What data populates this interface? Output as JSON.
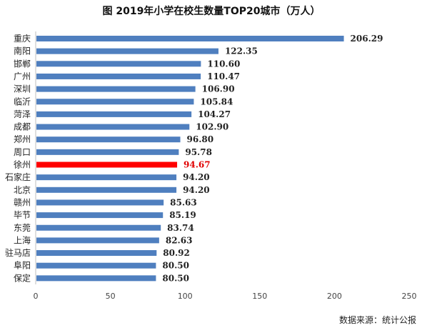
{
  "chart_data": {
    "type": "bar",
    "orientation": "horizontal",
    "title": "图 2019年小学在校生数量TOP20城市（万人）",
    "categories": [
      "重庆",
      "南阳",
      "邯郸",
      "广州",
      "深圳",
      "临沂",
      "菏泽",
      "成都",
      "郑州",
      "周口",
      "徐州",
      "石家庄",
      "北京",
      "赣州",
      "毕节",
      "东莞",
      "上海",
      "驻马店",
      "阜阳",
      "保定"
    ],
    "values": [
      206.29,
      122.35,
      110.6,
      110.47,
      106.9,
      105.84,
      104.27,
      102.9,
      96.8,
      95.78,
      94.67,
      94.2,
      94.2,
      85.63,
      85.19,
      83.74,
      82.63,
      80.92,
      80.5,
      80.5
    ],
    "value_labels": [
      "206.29",
      "122.35",
      "110.60",
      "110.47",
      "106.90",
      "105.84",
      "104.27",
      "102.90",
      "96.80",
      "95.78",
      "94.67",
      "94.20",
      "94.20",
      "85.63",
      "85.19",
      "83.74",
      "82.63",
      "80.92",
      "80.50",
      "80.50"
    ],
    "highlight": "徐州",
    "xlim": [
      0,
      250
    ],
    "xticks": [
      "0",
      "50",
      "100",
      "150",
      "200",
      "250"
    ],
    "grid": false,
    "colors": {
      "bar": "#4f7fbf",
      "highlight": "#ff0000",
      "highlight_text": "#e00000"
    }
  },
  "source": "数据来源：统计公报"
}
